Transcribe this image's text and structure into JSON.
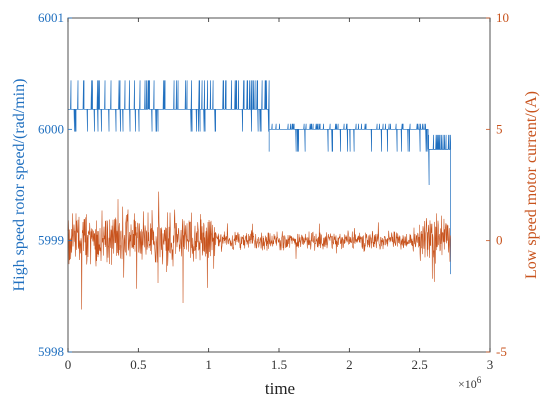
{
  "chart_data": {
    "type": "line",
    "xlabel": "time",
    "x_multiplier": "×10",
    "x_multiplier_exp": "6",
    "xlim": [
      0,
      3000000
    ],
    "x_ticks": [
      0,
      500000,
      1000000,
      1500000,
      2000000,
      2500000,
      3000000
    ],
    "x_tick_labels": [
      "0",
      "0.5",
      "1",
      "1.5",
      "2",
      "2.5",
      "3"
    ],
    "y_left": {
      "label": "High speed rotor speed/(rad/min)",
      "lim": [
        5998,
        6001
      ],
      "ticks": [
        5998,
        5999,
        6000,
        6001
      ],
      "tick_labels": [
        "5998",
        "5999",
        "6000",
        "6001"
      ],
      "color": "#1f6fbf"
    },
    "y_right": {
      "label": "Low speed motor current/(A)",
      "lim": [
        -5,
        10
      ],
      "ticks": [
        -5,
        0,
        5,
        10
      ],
      "tick_labels": [
        "-5",
        "0",
        "5",
        "10"
      ],
      "color": "#c8531d"
    },
    "series": [
      {
        "axis": "left",
        "color": "#1f6fbf",
        "segments": [
          {
            "x0": 0,
            "x1": 1430000,
            "base": 6000.18,
            "spike_up": 6000.44,
            "spike_down": 5999.98
          },
          {
            "x0": 1430000,
            "x1": 2560000,
            "base": 6000.0,
            "spike_up": 6000.05,
            "spike_down": 5999.8
          },
          {
            "x0": 2560000,
            "x1": 2720000,
            "base": 5999.82,
            "spike_up": 5999.95,
            "spike_down": 5999.5
          }
        ],
        "end_drop": 5998.7
      },
      {
        "axis": "right",
        "color": "#c8531d",
        "segments": [
          {
            "x0": 0,
            "x1": 1050000,
            "amplitude": 1.0,
            "center": 0.1
          },
          {
            "x0": 1050000,
            "x1": 2500000,
            "amplitude": 0.35,
            "center": 0.0
          },
          {
            "x0": 2500000,
            "x1": 2720000,
            "amplitude": 0.8,
            "center": 0.1
          }
        ]
      }
    ]
  }
}
